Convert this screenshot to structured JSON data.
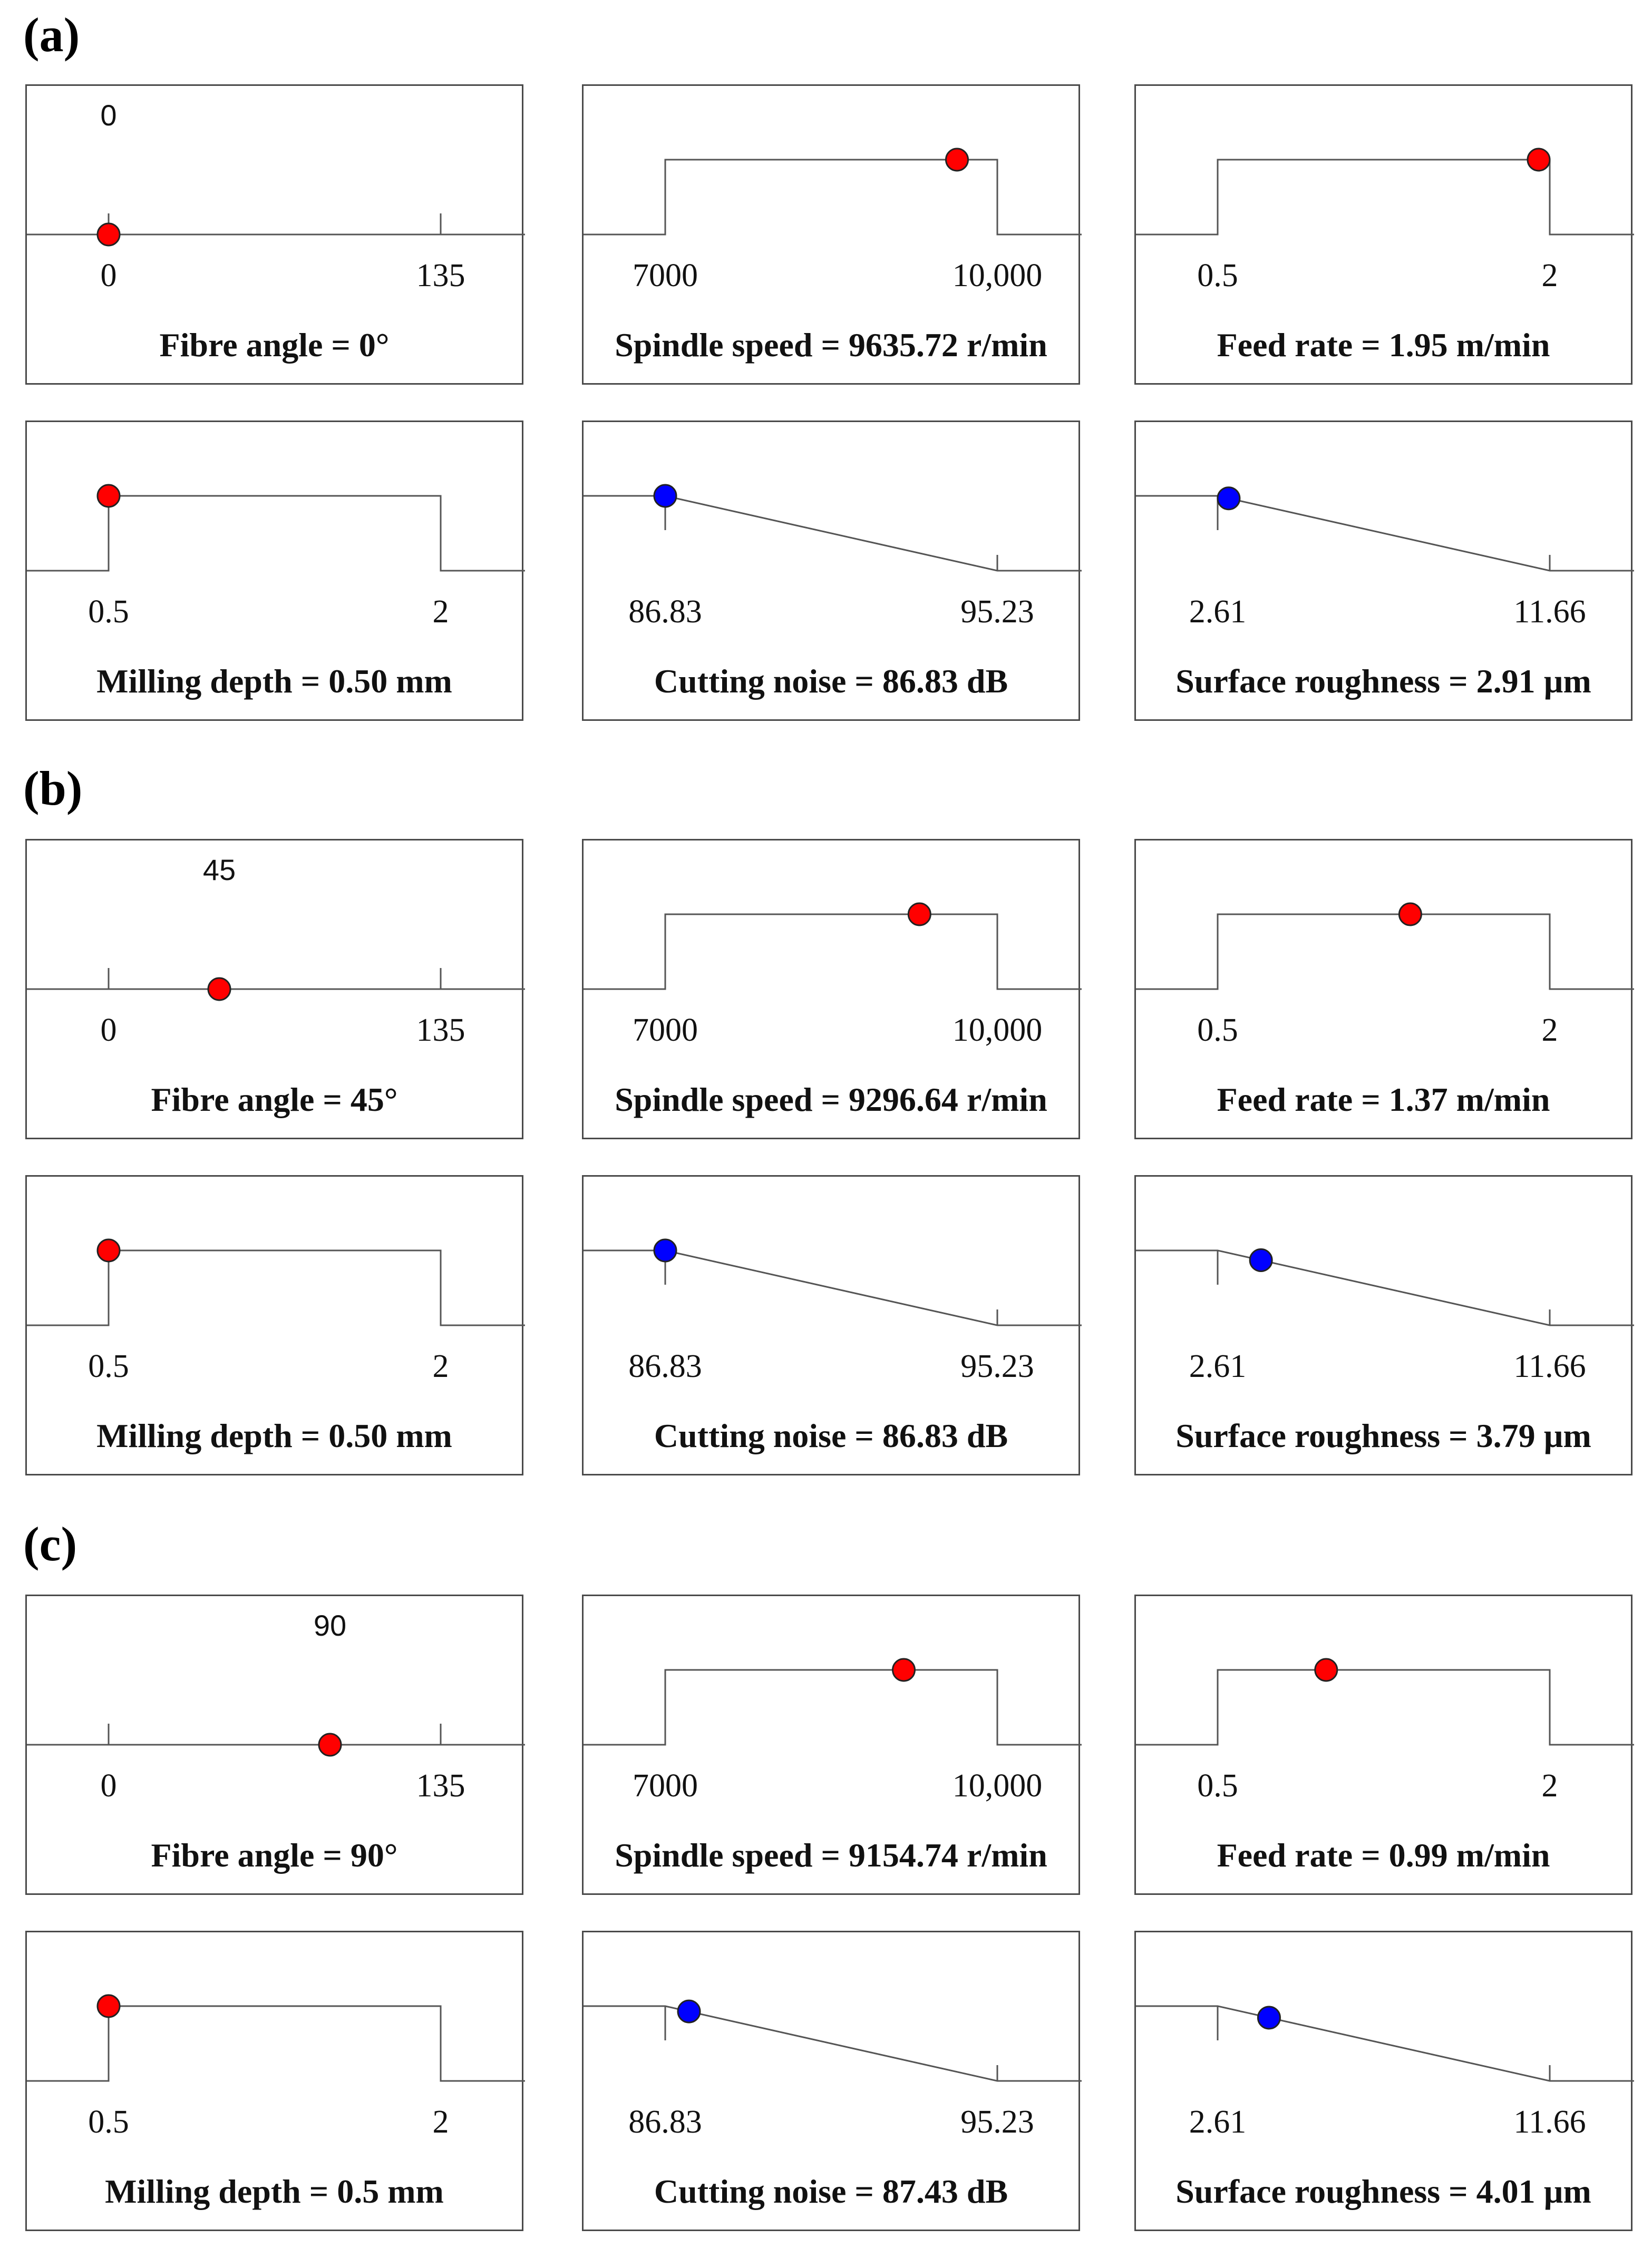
{
  "colors": {
    "desirable": "#ff0000",
    "response": "#0000ff",
    "line": "#555555"
  },
  "sections": [
    {
      "label": "(a)",
      "panels": [
        {
          "kind": "factor",
          "shape": "point",
          "min": 0,
          "max": 135,
          "low_label": "0",
          "high_label": "135",
          "value": 0,
          "value_label": "0",
          "caption": "Fibre angle = 0°"
        },
        {
          "kind": "factor",
          "shape": "box",
          "min": 7000,
          "max": 10000,
          "low_label": "7000",
          "high_label": "10,000",
          "value": 9635.72,
          "caption": "Spindle speed = 9635.72 r/min"
        },
        {
          "kind": "factor",
          "shape": "box",
          "min": 0.5,
          "max": 2,
          "low_label": "0.5",
          "high_label": "2",
          "value": 1.95,
          "caption": "Feed rate = 1.95 m/min"
        },
        {
          "kind": "factor",
          "shape": "box",
          "min": 0.5,
          "max": 2,
          "low_label": "0.5",
          "high_label": "2",
          "value": 0.5,
          "caption": "Milling depth = 0.50 mm"
        },
        {
          "kind": "response",
          "shape": "ramp",
          "min": 86.83,
          "max": 95.23,
          "low_label": "86.83",
          "high_label": "95.23",
          "value": 86.83,
          "caption": "Cutting noise = 86.83 dB"
        },
        {
          "kind": "response",
          "shape": "ramp",
          "min": 2.61,
          "max": 11.66,
          "low_label": "2.61",
          "high_label": "11.66",
          "value": 2.91,
          "caption": "Surface roughness = 2.91 µm"
        }
      ]
    },
    {
      "label": "(b)",
      "panels": [
        {
          "kind": "factor",
          "shape": "point",
          "min": 0,
          "max": 135,
          "low_label": "0",
          "high_label": "135",
          "value": 45,
          "value_label": "45",
          "caption": "Fibre angle = 45°"
        },
        {
          "kind": "factor",
          "shape": "box",
          "min": 7000,
          "max": 10000,
          "low_label": "7000",
          "high_label": "10,000",
          "value": 9296.64,
          "caption": "Spindle speed = 9296.64 r/min"
        },
        {
          "kind": "factor",
          "shape": "box",
          "min": 0.5,
          "max": 2,
          "low_label": "0.5",
          "high_label": "2",
          "value": 1.37,
          "caption": "Feed rate = 1.37 m/min"
        },
        {
          "kind": "factor",
          "shape": "box",
          "min": 0.5,
          "max": 2,
          "low_label": "0.5",
          "high_label": "2",
          "value": 0.5,
          "caption": "Milling depth = 0.50 mm"
        },
        {
          "kind": "response",
          "shape": "ramp",
          "min": 86.83,
          "max": 95.23,
          "low_label": "86.83",
          "high_label": "95.23",
          "value": 86.83,
          "caption": "Cutting noise = 86.83 dB"
        },
        {
          "kind": "response",
          "shape": "ramp",
          "min": 2.61,
          "max": 11.66,
          "low_label": "2.61",
          "high_label": "11.66",
          "value": 3.79,
          "caption": "Surface roughness = 3.79 µm"
        }
      ]
    },
    {
      "label": "(c)",
      "panels": [
        {
          "kind": "factor",
          "shape": "point",
          "min": 0,
          "max": 135,
          "low_label": "0",
          "high_label": "135",
          "value": 90,
          "value_label": "90",
          "caption": "Fibre angle = 90°"
        },
        {
          "kind": "factor",
          "shape": "box",
          "min": 7000,
          "max": 10000,
          "low_label": "7000",
          "high_label": "10,000",
          "value": 9154.74,
          "caption": "Spindle speed = 9154.74 r/min"
        },
        {
          "kind": "factor",
          "shape": "box",
          "min": 0.5,
          "max": 2,
          "low_label": "0.5",
          "high_label": "2",
          "value": 0.99,
          "caption": "Feed rate = 0.99 m/min"
        },
        {
          "kind": "factor",
          "shape": "box",
          "min": 0.5,
          "max": 2,
          "low_label": "0.5",
          "high_label": "2",
          "value": 0.5,
          "caption": "Milling depth = 0.5 mm"
        },
        {
          "kind": "response",
          "shape": "ramp",
          "min": 86.83,
          "max": 95.23,
          "low_label": "86.83",
          "high_label": "95.23",
          "value": 87.43,
          "caption": "Cutting noise = 87.43 dB"
        },
        {
          "kind": "response",
          "shape": "ramp",
          "min": 2.61,
          "max": 11.66,
          "low_label": "2.61",
          "high_label": "11.66",
          "value": 4.01,
          "caption": "Surface roughness = 4.01 µm"
        }
      ]
    }
  ],
  "chart_data": [
    {
      "type": "scatter",
      "title": "(a)",
      "points": [
        {
          "name": "Fibre angle",
          "range": [
            0,
            135
          ],
          "value": 0
        },
        {
          "name": "Spindle speed",
          "range": [
            7000,
            10000
          ],
          "value": 9635.72
        },
        {
          "name": "Feed rate",
          "range": [
            0.5,
            2
          ],
          "value": 1.95
        },
        {
          "name": "Milling depth",
          "range": [
            0.5,
            2
          ],
          "value": 0.5
        },
        {
          "name": "Cutting noise",
          "range": [
            86.83,
            95.23
          ],
          "value": 86.83
        },
        {
          "name": "Surface roughness",
          "range": [
            2.61,
            11.66
          ],
          "value": 2.91
        }
      ]
    },
    {
      "type": "scatter",
      "title": "(b)",
      "points": [
        {
          "name": "Fibre angle",
          "range": [
            0,
            135
          ],
          "value": 45
        },
        {
          "name": "Spindle speed",
          "range": [
            7000,
            10000
          ],
          "value": 9296.64
        },
        {
          "name": "Feed rate",
          "range": [
            0.5,
            2
          ],
          "value": 1.37
        },
        {
          "name": "Milling depth",
          "range": [
            0.5,
            2
          ],
          "value": 0.5
        },
        {
          "name": "Cutting noise",
          "range": [
            86.83,
            95.23
          ],
          "value": 86.83
        },
        {
          "name": "Surface roughness",
          "range": [
            2.61,
            11.66
          ],
          "value": 3.79
        }
      ]
    },
    {
      "type": "scatter",
      "title": "(c)",
      "points": [
        {
          "name": "Fibre angle",
          "range": [
            0,
            135
          ],
          "value": 90
        },
        {
          "name": "Spindle speed",
          "range": [
            7000,
            10000
          ],
          "value": 9154.74
        },
        {
          "name": "Feed rate",
          "range": [
            0.5,
            2
          ],
          "value": 0.99
        },
        {
          "name": "Milling depth",
          "range": [
            0.5,
            2
          ],
          "value": 0.5
        },
        {
          "name": "Cutting noise",
          "range": [
            86.83,
            95.23
          ],
          "value": 87.43
        },
        {
          "name": "Surface roughness",
          "range": [
            2.61,
            11.66
          ],
          "value": 4.01
        }
      ]
    }
  ]
}
